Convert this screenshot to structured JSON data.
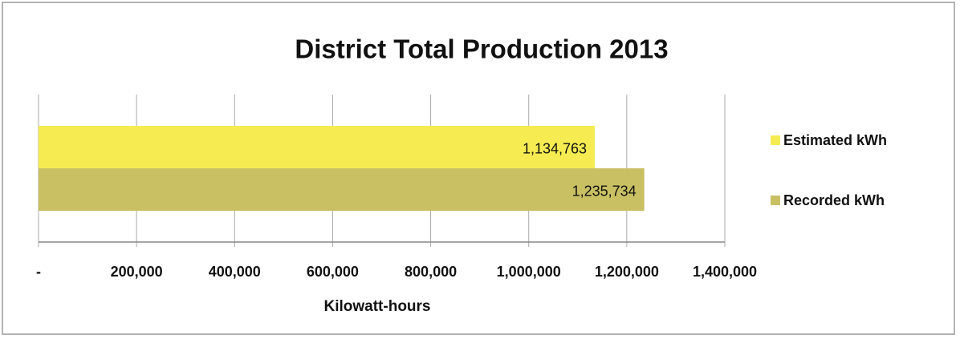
{
  "chart_data": {
    "type": "barh",
    "title": "District Total Production 2013",
    "categories": [
      null
    ],
    "series": [
      {
        "name": "Estimated kWh",
        "color": "#f6ec52",
        "values": [
          1134763
        ],
        "value_labels": [
          "1,134,763"
        ]
      },
      {
        "name": "Recorded kWh",
        "color": "#c9c064",
        "values": [
          1235734
        ],
        "value_labels": [
          "1,235,734"
        ]
      }
    ],
    "x_label": "Kilowatt-hours",
    "xlim": [
      0,
      1400000
    ],
    "xticks": [
      {
        "value": 0,
        "label": "-"
      },
      {
        "value": 200000,
        "label": "200,000"
      },
      {
        "value": 400000,
        "label": "400,000"
      },
      {
        "value": 600000,
        "label": "600,000"
      },
      {
        "value": 800000,
        "label": "800,000"
      },
      {
        "value": 1000000,
        "label": "1,000,000"
      },
      {
        "value": 1200000,
        "label": "1,200,000"
      },
      {
        "value": 1400000,
        "label": "1,400,000"
      }
    ],
    "grid": true,
    "legend": "right"
  }
}
